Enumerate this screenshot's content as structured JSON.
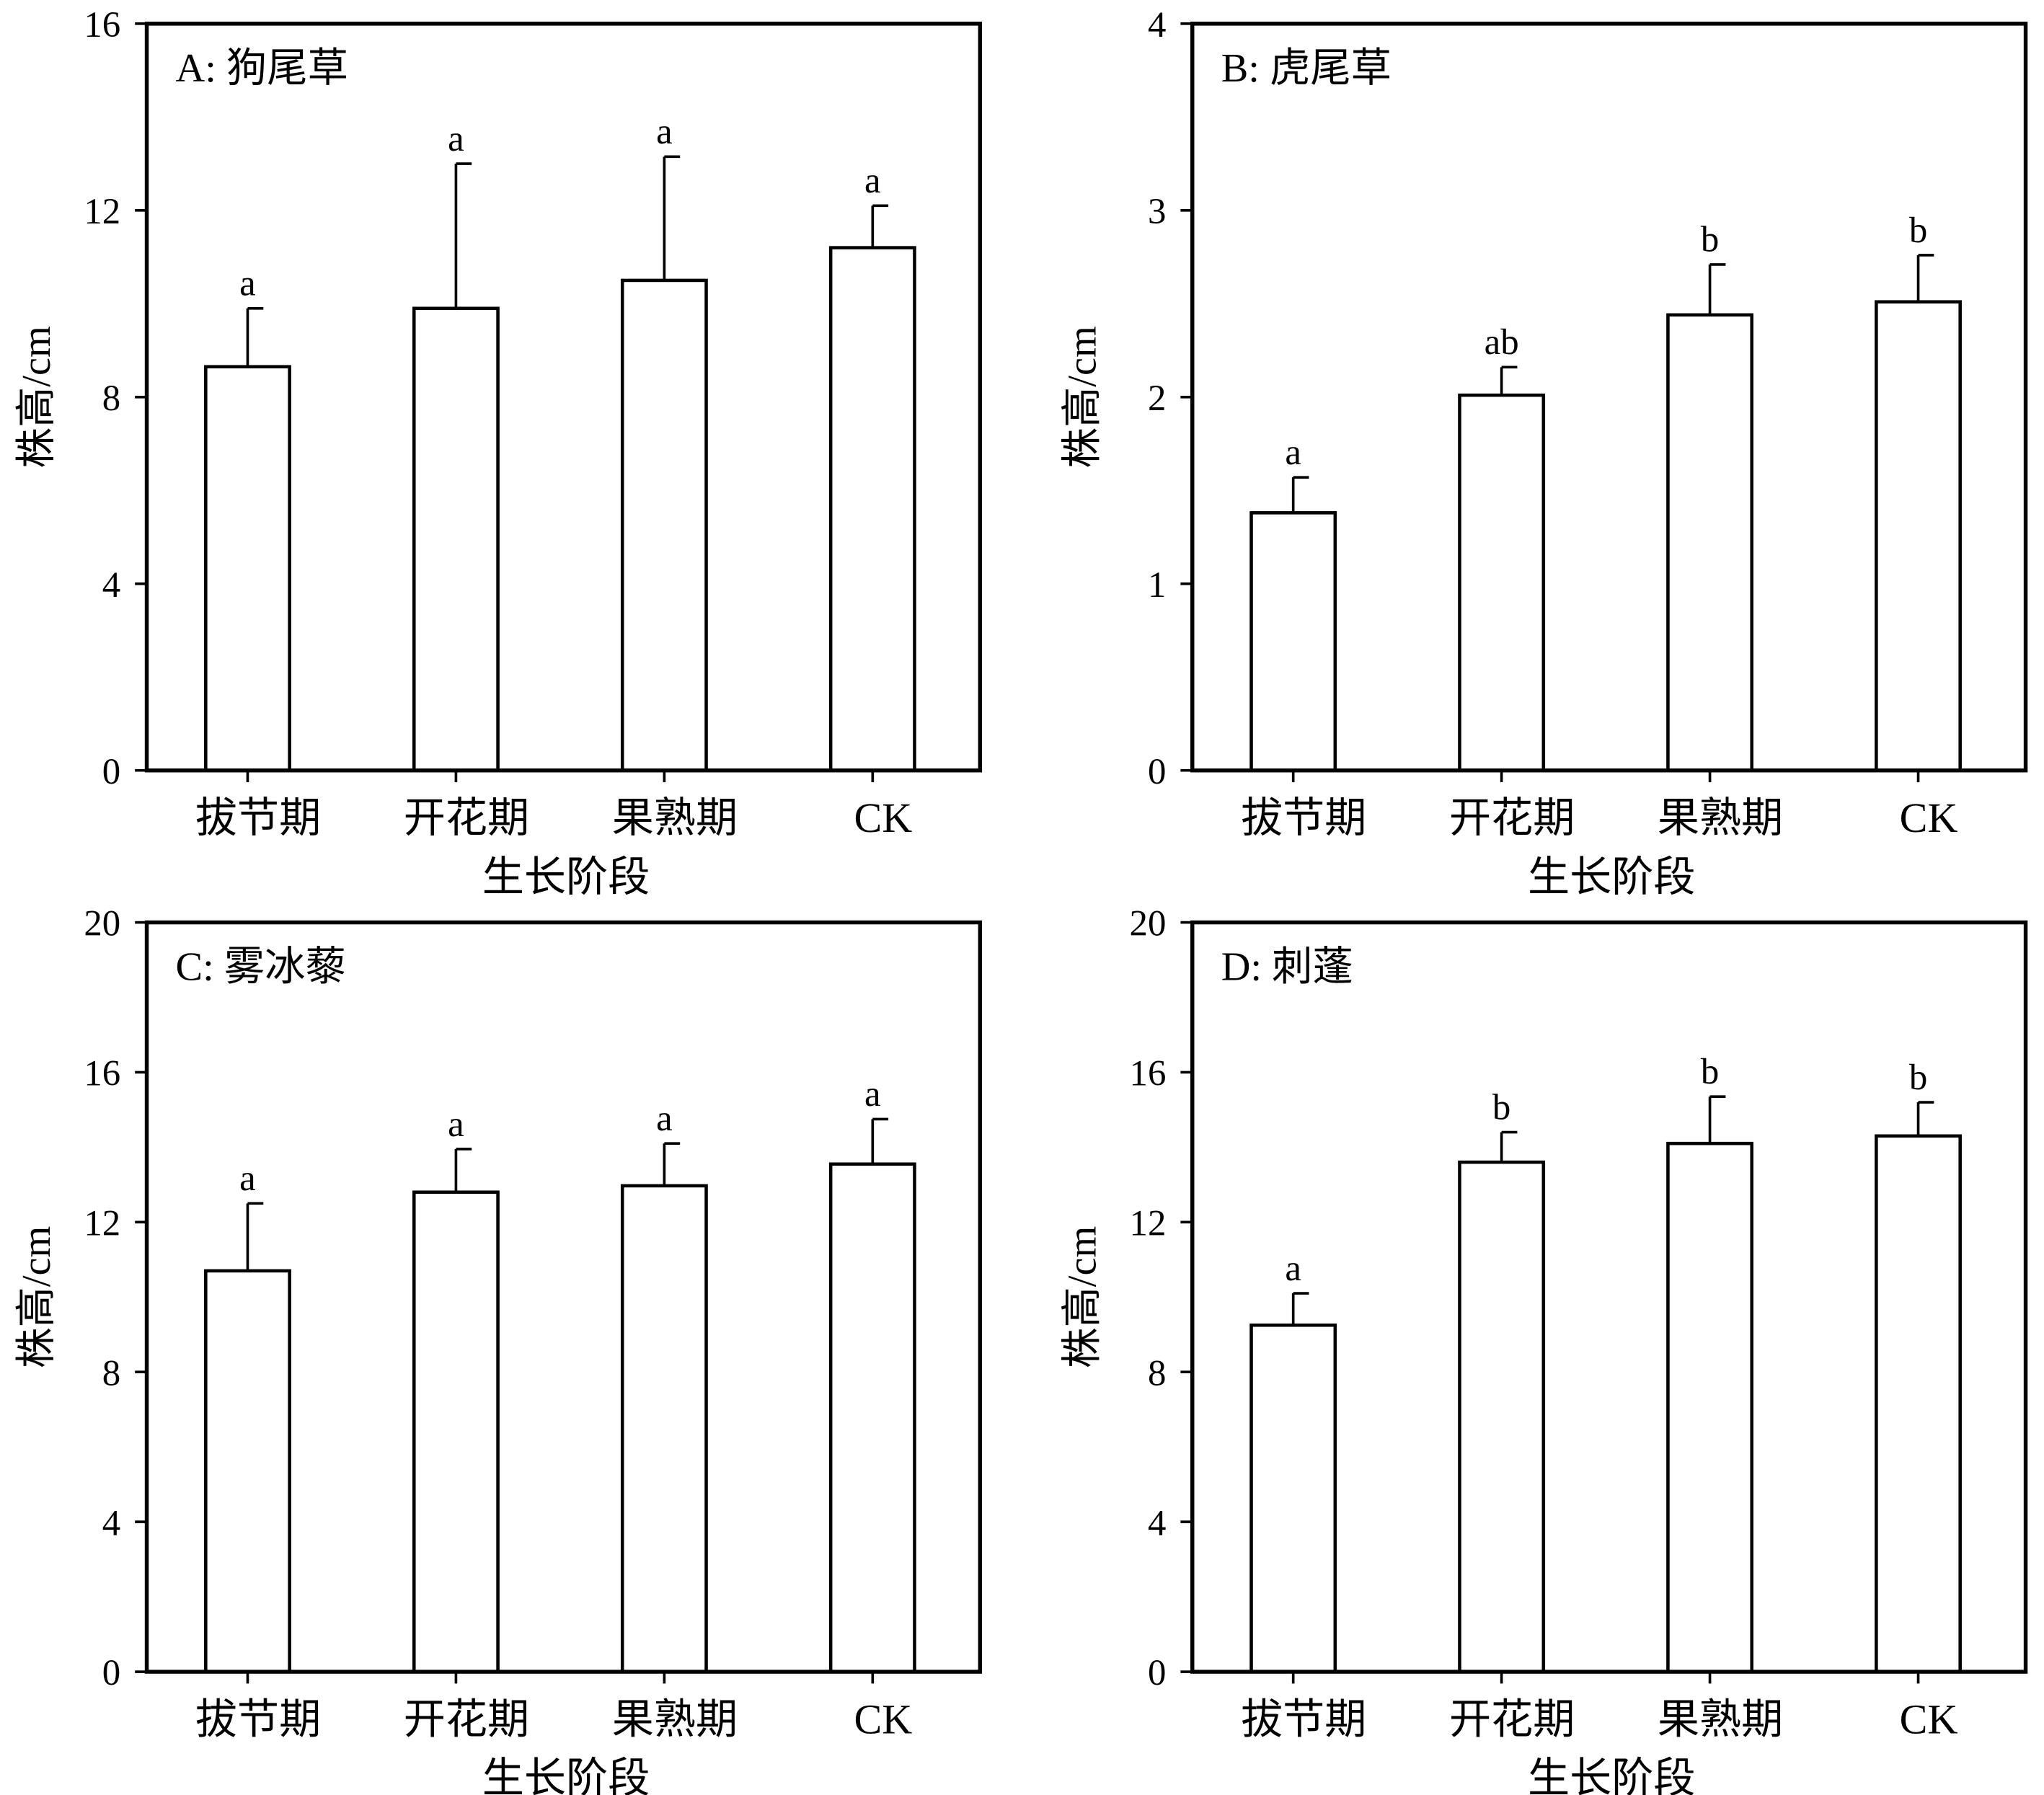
{
  "chart_data": [
    {
      "type": "bar",
      "title": "A: 狗尾草",
      "xlabel": "生长阶段",
      "ylabel": "株高/cm",
      "categories": [
        "拔节期",
        "开花期",
        "果熟期",
        "CK"
      ],
      "values": [
        8.65,
        9.9,
        10.5,
        11.2
      ],
      "error_upper": [
        9.9,
        13.0,
        13.15,
        12.1
      ],
      "letters": [
        "a",
        "a",
        "a",
        "a"
      ],
      "ylim": [
        0,
        16
      ],
      "yticks": [
        0,
        4,
        8,
        12,
        16
      ]
    },
    {
      "type": "bar",
      "title": "B: 虎尾草",
      "xlabel": "生长阶段",
      "ylabel": "株高/cm",
      "categories": [
        "拔节期",
        "开花期",
        "果熟期",
        "CK"
      ],
      "values": [
        1.38,
        2.01,
        2.44,
        2.51
      ],
      "error_upper": [
        1.57,
        2.16,
        2.71,
        2.76
      ],
      "letters": [
        "a",
        "ab",
        "b",
        "b"
      ],
      "ylim": [
        0,
        4
      ],
      "yticks": [
        0,
        1,
        2,
        3,
        4
      ]
    },
    {
      "type": "bar",
      "title": "C: 雾冰藜",
      "xlabel": "生长阶段",
      "ylabel": "株高/cm",
      "categories": [
        "拔节期",
        "开花期",
        "果熟期",
        "CK"
      ],
      "values": [
        10.7,
        12.8,
        12.97,
        13.55
      ],
      "error_upper": [
        12.5,
        13.95,
        14.1,
        14.75
      ],
      "letters": [
        "a",
        "a",
        "a",
        "a"
      ],
      "ylim": [
        0,
        20
      ],
      "yticks": [
        0,
        4,
        8,
        12,
        16,
        20
      ]
    },
    {
      "type": "bar",
      "title": "D: 刺蓬",
      "xlabel": "生长阶段",
      "ylabel": "株高/cm",
      "categories": [
        "拔节期",
        "开花期",
        "果熟期",
        "CK"
      ],
      "values": [
        9.25,
        13.6,
        14.1,
        14.3
      ],
      "error_upper": [
        10.1,
        14.4,
        15.35,
        15.2
      ],
      "letters": [
        "a",
        "b",
        "b",
        "b"
      ],
      "ylim": [
        0,
        20
      ],
      "yticks": [
        0,
        4,
        8,
        12,
        16,
        20
      ]
    }
  ]
}
